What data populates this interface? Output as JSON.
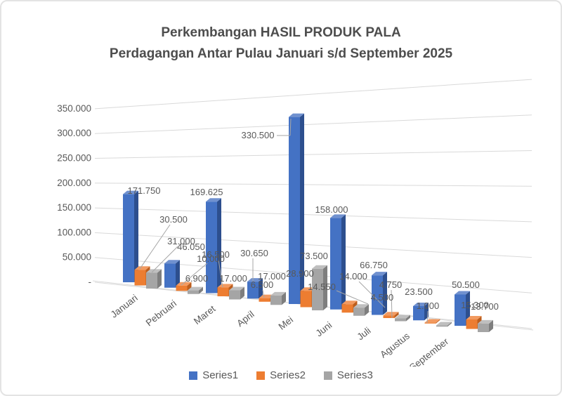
{
  "title": {
    "line1": "Perkembangan HASIL PRODUK PALA",
    "line2": "Perdagangan Antar Pulau Januari s/d September 2025"
  },
  "colors": {
    "series1": "#4472C4",
    "series2": "#ED7D31",
    "series3": "#A5A5A5",
    "gridline": "#D9D9D9",
    "text": "#595959",
    "leader": "#A6A6A6"
  },
  "chart_data": {
    "type": "bar",
    "style": "3d-clustered-column",
    "title": "Perkembangan HASIL PRODUK PALA Perdagangan Antar Pulau Januari s/d September 2025",
    "categories": [
      "Januari",
      "Pebruari",
      "Maret",
      "April",
      "Mei",
      "Juni",
      "Juli",
      "Agustus",
      "September"
    ],
    "y_axis": {
      "ticks": [
        "-",
        "50.000",
        "100.000",
        "150.000",
        "200.000",
        "250.000",
        "300.000",
        "350.000"
      ],
      "min": 0,
      "max": 350000,
      "step": 50000,
      "grid": true
    },
    "series": [
      {
        "name": "Series1",
        "color": "#4472C4",
        "values": [
          171750,
          46050,
          169625,
          30650,
          330500,
          158000,
          66750,
          23500,
          50500
        ],
        "labels": [
          "171.750",
          "46.050",
          "169.625",
          "30.650",
          "330.500",
          "158.000",
          "66.750",
          "23.500",
          "50.500"
        ]
      },
      {
        "name": "Series2",
        "color": "#ED7D31",
        "values": [
          30500,
          10000,
          16500,
          6500,
          28900,
          14550,
          4500,
          1000,
          15300
        ],
        "labels": [
          "30.500",
          "10.000",
          "16.500",
          "6.500",
          "28.900",
          "14.550",
          "4.500",
          "1.000",
          "15.300"
        ]
      },
      {
        "name": "Series3",
        "color": "#A5A5A5",
        "values": [
          31000,
          6900,
          17000,
          17000,
          73500,
          14000,
          4750,
          2000,
          13700
        ],
        "labels": [
          "31.000",
          "6.900",
          "17.000",
          "17.000",
          "73.500",
          "14.000",
          "4.750",
          "",
          "13.700"
        ]
      }
    ],
    "legend": {
      "position": "bottom",
      "entries": [
        "Series1",
        "Series2",
        "Series3"
      ]
    }
  }
}
